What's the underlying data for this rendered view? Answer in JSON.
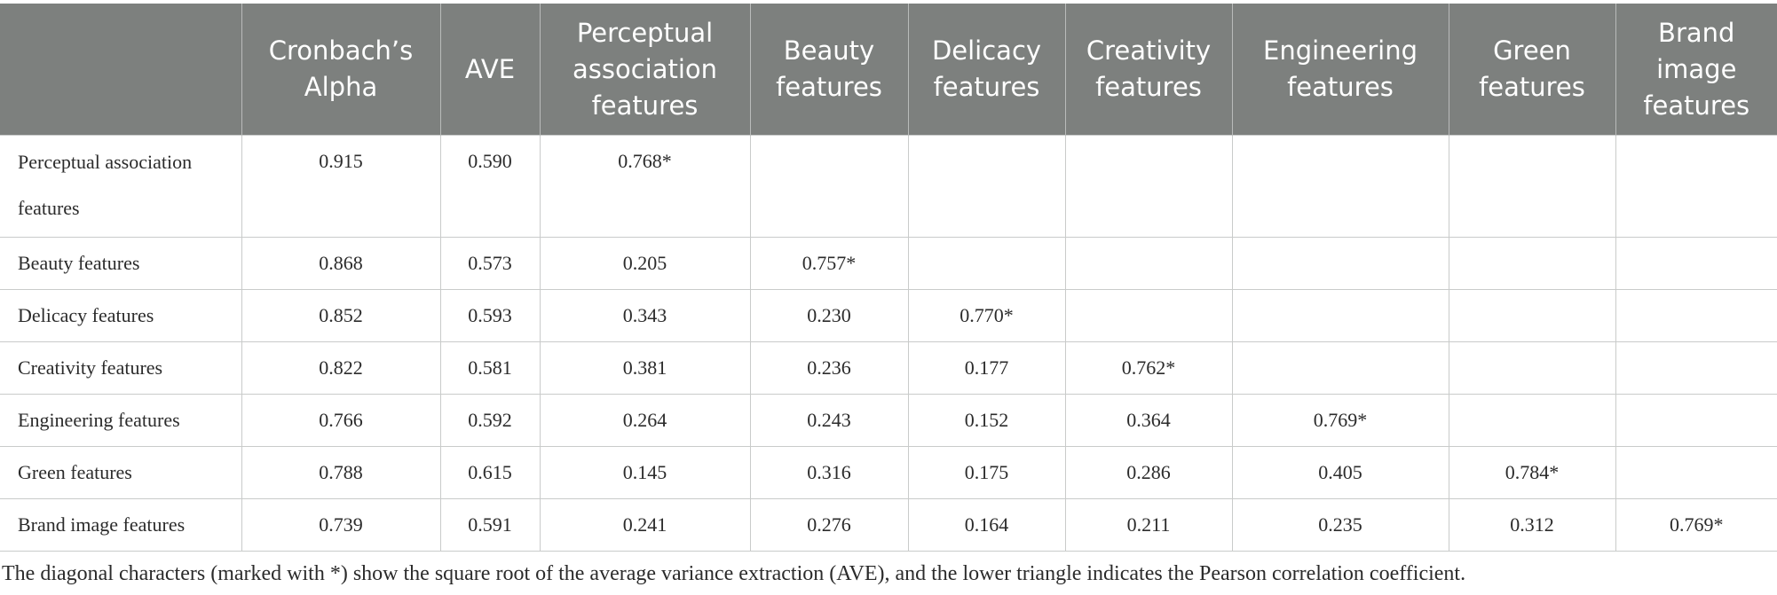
{
  "table": {
    "headers": [
      "",
      "Cronbach’s Alpha",
      "AVE",
      "Perceptual association features",
      "Beauty features",
      "Delicacy features",
      "Creativity features",
      "Engineering features",
      "Green features",
      "Brand image features"
    ],
    "rows": [
      [
        "Perceptual association features",
        "0.915",
        "0.590",
        "0.768*",
        "",
        "",
        "",
        "",
        "",
        ""
      ],
      [
        "Beauty features",
        "0.868",
        "0.573",
        "0.205",
        "0.757*",
        "",
        "",
        "",
        "",
        ""
      ],
      [
        "Delicacy features",
        "0.852",
        "0.593",
        "0.343",
        "0.230",
        "0.770*",
        "",
        "",
        "",
        ""
      ],
      [
        "Creativity features",
        "0.822",
        "0.581",
        "0.381",
        "0.236",
        "0.177",
        "0.762*",
        "",
        "",
        ""
      ],
      [
        "Engineering features",
        "0.766",
        "0.592",
        "0.264",
        "0.243",
        "0.152",
        "0.364",
        "0.769*",
        "",
        ""
      ],
      [
        "Green features",
        "0.788",
        "0.615",
        "0.145",
        "0.316",
        "0.175",
        "0.286",
        "0.405",
        "0.784*",
        ""
      ],
      [
        "Brand image features",
        "0.739",
        "0.591",
        "0.241",
        "0.276",
        "0.164",
        "0.211",
        "0.235",
        "0.312",
        "0.769*"
      ]
    ]
  },
  "footnote": "The diagonal characters (marked with *) show the square root of the average variance extraction (AVE), and the lower triangle indicates the Pearson correlation coefficient."
}
